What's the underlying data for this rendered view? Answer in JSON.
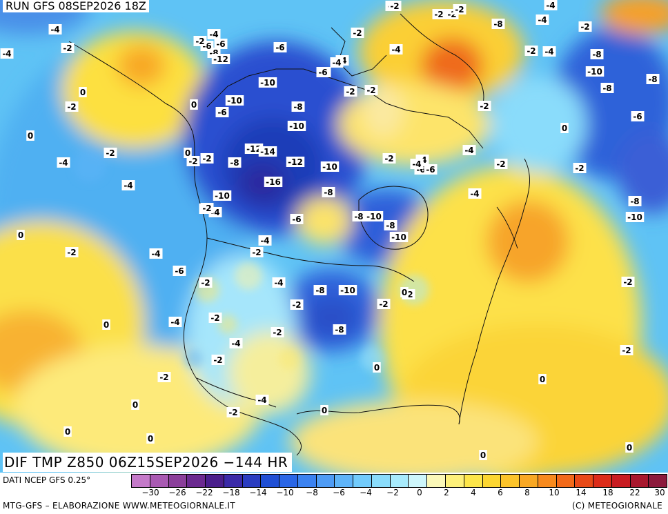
{
  "header": {
    "run_title": "RUN GFS 08SEP2026 18Z"
  },
  "map": {
    "field_title": "DIF TMP Z850 06Z15SEP2026 −144 HR",
    "labels": [
      "-4",
      "-2",
      "-4",
      "-2",
      "-2",
      "-6",
      "-8",
      "-12",
      "-6",
      "-10",
      "-6",
      "-4",
      "-2",
      "-2",
      "-2",
      "-8",
      "-10",
      "-6",
      "-10",
      "-8",
      "-10",
      "-12",
      "-14",
      "-8",
      "-12",
      "-16",
      "-10",
      "-10",
      "-8",
      "-2",
      "-4",
      "-2",
      "-2",
      "-6",
      "-4",
      "-4",
      "-8",
      "-6",
      "-2",
      "-8",
      "-2",
      "-4",
      "-2",
      "-6",
      "-2",
      "-8",
      "-10",
      "-4",
      "-2",
      "-8",
      "-2",
      "-8",
      "-10",
      "-2",
      "-4",
      "-4",
      "-6",
      "-4",
      "-2",
      "-2",
      "-4",
      "-6",
      "-8",
      "-10",
      "-4",
      "-2",
      "-2",
      "-4",
      "-6",
      "-2",
      "-2",
      "-4",
      "-8",
      "-10",
      "-2",
      "-4",
      "-2",
      "-4",
      "-4",
      "-2",
      "-6",
      "-4",
      "-2",
      "-8",
      "-2",
      "-4",
      "-2",
      "-4",
      "-2",
      "-2",
      "-2",
      "-2",
      "-4",
      "-2",
      "-2",
      "-2",
      "0",
      "0",
      "0",
      "0",
      "0",
      "0",
      "0",
      "0",
      "0",
      "0",
      "0",
      "0",
      "0",
      "0",
      "0",
      "0"
    ]
  },
  "legend": {
    "source": "DATI NCEP GFS 0.25°",
    "colors": [
      "#c47ac9",
      "#a85ab2",
      "#8a3f9a",
      "#6b2a90",
      "#4a1f8c",
      "#3a2aa8",
      "#2a3cc0",
      "#1f4fd4",
      "#2a66e6",
      "#3b82f0",
      "#4f9cf5",
      "#5fb4f8",
      "#72cbfb",
      "#8adcfb",
      "#a8ebfc",
      "#cdf6fb",
      "#fbf8b8",
      "#fdf07a",
      "#fde64a",
      "#fcd631",
      "#fcc42a",
      "#f9a824",
      "#f78a1e",
      "#f26a1a",
      "#e84a18",
      "#dc2c1a",
      "#c81c22",
      "#a8182e",
      "#8c1a3c"
    ],
    "ticks": [
      "−30",
      "−26",
      "−22",
      "−18",
      "−14",
      "−10",
      "−8",
      "−6",
      "−4",
      "−2",
      "0",
      "2",
      "4",
      "6",
      "8",
      "10",
      "14",
      "18",
      "22",
      "30"
    ]
  },
  "footer": {
    "credit_left": "MTG-GFS – ELABORAZIONE WWW.METEOGIORNALE.IT",
    "credit_right": "(C) METEOGIORNALE"
  }
}
